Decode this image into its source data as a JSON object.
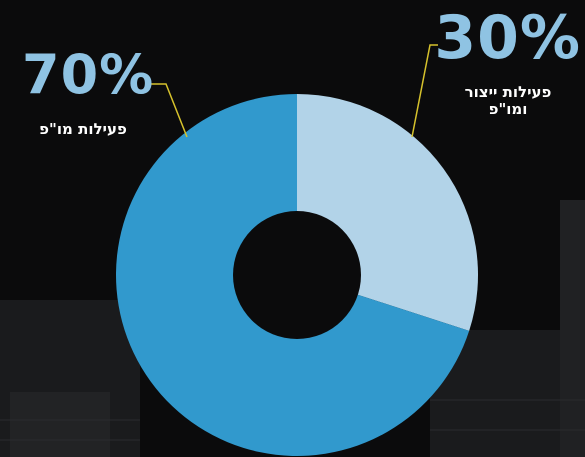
{
  "chart_data": {
    "type": "pie",
    "donut": true,
    "title": "",
    "slices": [
      {
        "label": "פעילות ייצור\nומו\"פ",
        "value": 30,
        "display": "30%",
        "color": "#b2d3e8"
      },
      {
        "label": "פעילות מו\"פ",
        "value": 70,
        "display": "70%",
        "color": "#3199cd"
      }
    ],
    "leader_color": "#d6c22c"
  },
  "colors": {
    "background": "#0b0b0c",
    "percent_text": "#8fc3e3",
    "label_text": "#ffffff"
  }
}
